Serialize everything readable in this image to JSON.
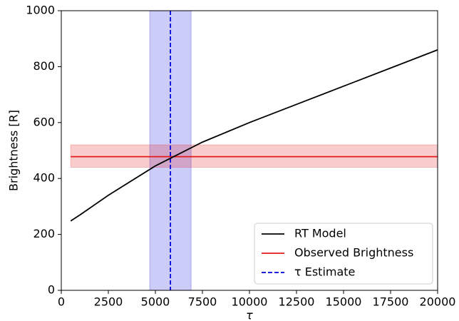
{
  "chart_data": {
    "type": "line",
    "xlabel": "τ",
    "ylabel": "Brightness [R]",
    "xlim": [
      0,
      20000
    ],
    "ylim": [
      0,
      1000
    ],
    "xticks": [
      0,
      2500,
      5000,
      7500,
      10000,
      12500,
      15000,
      17500,
      20000
    ],
    "yticks": [
      0,
      200,
      400,
      600,
      800,
      1000
    ],
    "series": [
      {
        "name": "RT Model",
        "color": "#000000",
        "x": [
          500,
          1000,
          2500,
          5000,
          7500,
          10000,
          12500,
          15000,
          17500,
          20000
        ],
        "values": [
          248,
          270,
          340,
          445,
          530,
          600,
          665,
          730,
          795,
          860
        ]
      }
    ],
    "observed": {
      "name": "Observed Brightness",
      "color": "#e41a1c",
      "value": 478,
      "band": [
        440,
        520
      ],
      "xrange": [
        500,
        20000
      ]
    },
    "estimate": {
      "name": "τ Estimate",
      "color": "#0000dd",
      "value": 5800,
      "band": [
        4700,
        6900
      ]
    },
    "legend": "lower right"
  }
}
